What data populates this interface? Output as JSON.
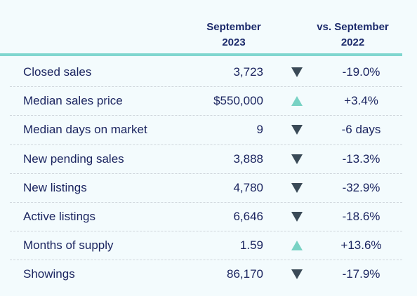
{
  "header": {
    "current_line1": "September",
    "current_line2": "2023",
    "change_line1": "vs. September",
    "change_line2": "2022"
  },
  "colors": {
    "up_arrow": "#78d2c4",
    "down_arrow": "#3a4a57",
    "text": "#1b2560",
    "accent_rule": "#7fd6cf"
  },
  "rows": [
    {
      "label": "Closed sales",
      "value": "3,723",
      "direction": "down",
      "change": "-19.0%"
    },
    {
      "label": "Median sales price",
      "value": "$550,000",
      "direction": "up",
      "change": "+3.4%"
    },
    {
      "label": "Median days on market",
      "value": "9",
      "direction": "down",
      "change": "-6 days"
    },
    {
      "label": "New pending sales",
      "value": "3,888",
      "direction": "down",
      "change": "-13.3%"
    },
    {
      "label": "New listings",
      "value": "4,780",
      "direction": "down",
      "change": "-32.9%"
    },
    {
      "label": "Active listings",
      "value": "6,646",
      "direction": "down",
      "change": "-18.6%"
    },
    {
      "label": "Months of supply",
      "value": "1.59",
      "direction": "up",
      "change": "+13.6%"
    },
    {
      "label": "Showings",
      "value": "86,170",
      "direction": "down",
      "change": "-17.9%"
    }
  ]
}
